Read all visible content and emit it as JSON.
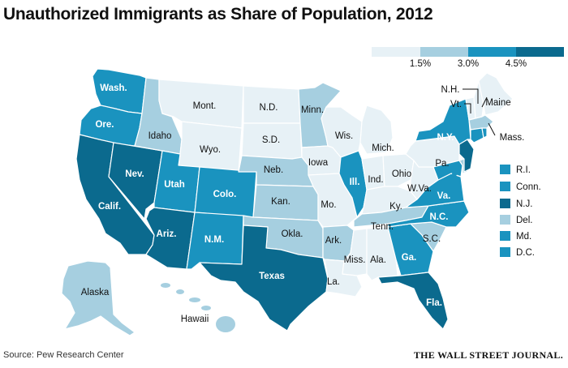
{
  "title": "Unauthorized Immigrants as Share of Population, 2012",
  "source": "Source: Pew Research Center",
  "publisher": "THE WALL STREET JOURNAL.",
  "colors": {
    "c1": "#e7f1f6",
    "c2": "#a6cfe0",
    "c3": "#1a93bf",
    "c4": "#0b6a8e",
    "background": "#ffffff"
  },
  "legend": {
    "ticks": [
      "1.5%",
      "3.0%",
      "4.5%"
    ],
    "bins": [
      "<1.5%",
      "1.5-3.0%",
      "3.0-4.5%",
      ">4.5%"
    ]
  },
  "state_labels": {
    "wash": "Wash.",
    "ore": "Ore.",
    "calif": "Calif.",
    "nev": "Nev.",
    "idaho": "Idaho",
    "mont": "Mont.",
    "wyo": "Wyo.",
    "utah": "Utah",
    "colo": "Colo.",
    "ariz": "Ariz.",
    "nm": "N.M.",
    "nd": "N.D.",
    "sd": "S.D.",
    "neb": "Neb.",
    "kan": "Kan.",
    "okla": "Okla.",
    "texas": "Texas",
    "minn": "Minn.",
    "iowa": "Iowa",
    "mo": "Mo.",
    "ark": "Ark.",
    "la": "La.",
    "wis": "Wis.",
    "ill": "Ill.",
    "mich": "Mich.",
    "ind": "Ind.",
    "ohio": "Ohio",
    "ky": "Ky.",
    "tenn": "Tenn.",
    "miss": "Miss.",
    "ala": "Ala.",
    "ga": "Ga.",
    "fla": "Fla.",
    "sc": "S.C.",
    "nc": "N.C.",
    "va": "Va.",
    "wva": "W.Va.",
    "pa": "Pa.",
    "ny": "N.Y.",
    "nh": "N.H.",
    "vt": "Vt.",
    "maine": "Maine",
    "mass": "Mass.",
    "alaska": "Alaska",
    "hawaii": "Hawaii"
  },
  "side_legend": [
    {
      "label": "R.I.",
      "level": "c3"
    },
    {
      "label": "Conn.",
      "level": "c3"
    },
    {
      "label": "N.J.",
      "level": "c4"
    },
    {
      "label": "Del.",
      "level": "c2"
    },
    {
      "label": "Md.",
      "level": "c3"
    },
    {
      "label": "D.C.",
      "level": "c3"
    }
  ]
}
